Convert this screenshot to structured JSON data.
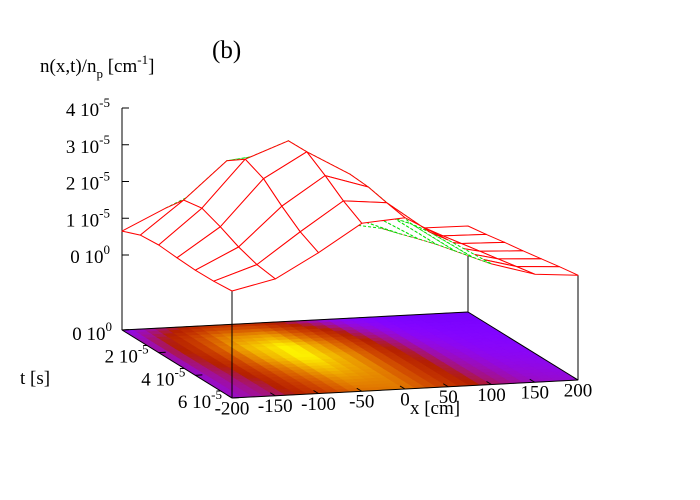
{
  "chart_data": {
    "type": "surface3d",
    "title": "(b)",
    "zlabel": {
      "text": "n(x,t)/n",
      "sub": "p",
      "unit": " [cm",
      "unit_sup": "-1",
      "unit_end": "]"
    },
    "xlabel": "x [cm]",
    "tlabel": "t [s]",
    "x": [
      -200,
      -150,
      -100,
      -50,
      0,
      50,
      100,
      150,
      200
    ],
    "t": [
      0,
      1e-05,
      2e-05,
      3e-05,
      4e-05,
      5e-05,
      6e-05
    ],
    "z": [
      [
        6.5e-06,
        1.21e-05,
        1.74e-05,
        1.67e-05,
        1.08e-05,
        5.7e-06,
        3.6e-06,
        3.1e-06,
        3e-06
      ],
      [
        8.5e-06,
        1.74e-05,
        2.75e-05,
        2.88e-05,
        1.96e-05,
        9.8e-06,
        5.2e-06,
        4e-06,
        3.8e-06
      ],
      [
        8.9e-06,
        1.83e-05,
        3.1e-05,
        3.54e-05,
        2.62e-05,
        1.37e-05,
        6.9e-06,
        5e-06,
        4.7e-06
      ],
      [
        8.5e-06,
        1.63e-05,
        2.88e-05,
        3.55e-05,
        2.88e-05,
        1.63e-05,
        8.5e-06,
        6e-06,
        5.5e-06
      ],
      [
        8.2e-06,
        1.39e-05,
        2.44e-05,
        3.21e-05,
        2.84e-05,
        1.77e-05,
        9.8e-06,
        7e-06,
        6.4e-06
      ],
      [
        8.3e-06,
        1.22e-05,
        2.05e-05,
        2.83e-05,
        2.72e-05,
        1.86e-05,
        1.11e-05,
        8e-06,
        7.3e-06
      ],
      [
        8.7e-06,
        1.14e-05,
        1.79e-05,
        2.53e-05,
        2.62e-05,
        1.95e-05,
        1.24e-05,
        9e-06,
        8.1e-06
      ]
    ],
    "xlim": [
      -200,
      200
    ],
    "tlim": [
      0,
      6e-05
    ],
    "zlim": [
      0,
      4e-05
    ],
    "xticks": [
      -200,
      -150,
      -100,
      -50,
      0,
      50,
      100,
      150,
      200
    ],
    "tticks": [
      {
        "value": 0,
        "label": "0 10",
        "sup": "0"
      },
      {
        "value": 2e-05,
        "label": "2 10",
        "sup": "-5"
      },
      {
        "value": 4e-05,
        "label": "4 10",
        "sup": "-5"
      },
      {
        "value": 6e-05,
        "label": "6 10",
        "sup": "-5"
      }
    ],
    "zticks": [
      {
        "value": 0,
        "label": "0 10",
        "sup": "0"
      },
      {
        "value": 1e-05,
        "label": "1 10",
        "sup": "-5"
      },
      {
        "value": 2e-05,
        "label": "2 10",
        "sup": "-5"
      },
      {
        "value": 3e-05,
        "label": "3 10",
        "sup": "-5"
      },
      {
        "value": 4e-05,
        "label": "4 10",
        "sup": "-5"
      }
    ],
    "surface_color": "#ff0000",
    "underside_color": "#00dd00",
    "base_map": true
  }
}
